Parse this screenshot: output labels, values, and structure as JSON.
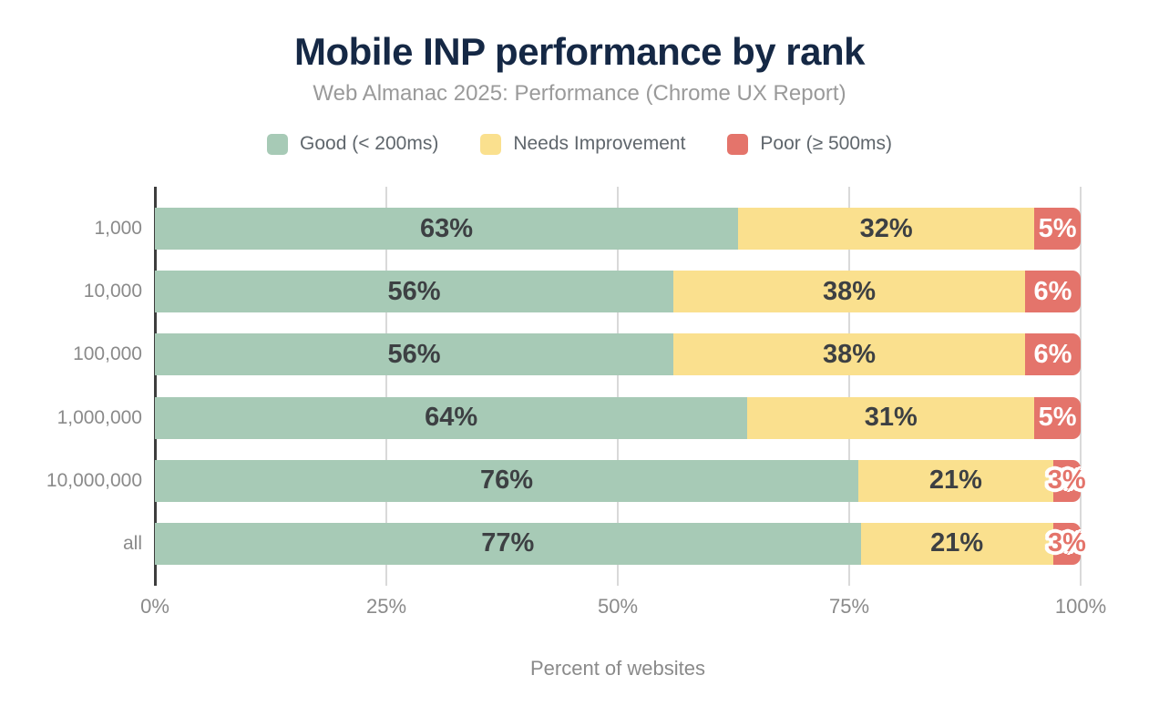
{
  "figure": {
    "title": "Mobile INP performance by rank",
    "subtitle": "Web Almanac 2025: Performance (Chrome UX Report)"
  },
  "legend": [
    {
      "key": "good",
      "label": "Good (< 200ms)",
      "color": "#a7cab6"
    },
    {
      "key": "needs-improvement",
      "label": "Needs Improvement",
      "color": "#fae08e"
    },
    {
      "key": "poor",
      "label": "Poor (≥ 500ms)",
      "color": "#e4746b"
    }
  ],
  "chart_data": {
    "type": "bar",
    "orientation": "horizontal",
    "stacked": true,
    "title": "Mobile INP performance by rank",
    "subtitle": "Web Almanac 2025: Performance (Chrome UX Report)",
    "categories": [
      "1,000",
      "10,000",
      "100,000",
      "1,000,000",
      "10,000,000",
      "all"
    ],
    "series": [
      {
        "key": "good",
        "name": "Good (< 200ms)",
        "color": "#a7cab6",
        "values": [
          63,
          56,
          56,
          64,
          76,
          77
        ]
      },
      {
        "key": "needs-improvement",
        "name": "Needs Improvement",
        "color": "#fae08e",
        "values": [
          32,
          38,
          38,
          31,
          21,
          21
        ]
      },
      {
        "key": "poor",
        "name": "Poor (≥ 500ms)",
        "color": "#e4746b",
        "values": [
          5,
          6,
          6,
          5,
          3,
          3
        ]
      }
    ],
    "xlabel": "Percent of websites",
    "ylabel": "",
    "x_ticks": [
      "0%",
      "25%",
      "50%",
      "75%",
      "100%"
    ],
    "xlim": [
      0,
      100
    ],
    "grid": true,
    "legend_position": "top",
    "value_label_format": "percent"
  },
  "colors": {
    "background": "#ffffff",
    "title": "#152845",
    "subtitle": "#9a9a9a",
    "axis_line": "#3d3d3d",
    "gridline": "#d9d9d9",
    "tick_label": "#8a8a8a",
    "bar_label_dark": "#3d4043",
    "bar_label_light": "#ffffff"
  }
}
